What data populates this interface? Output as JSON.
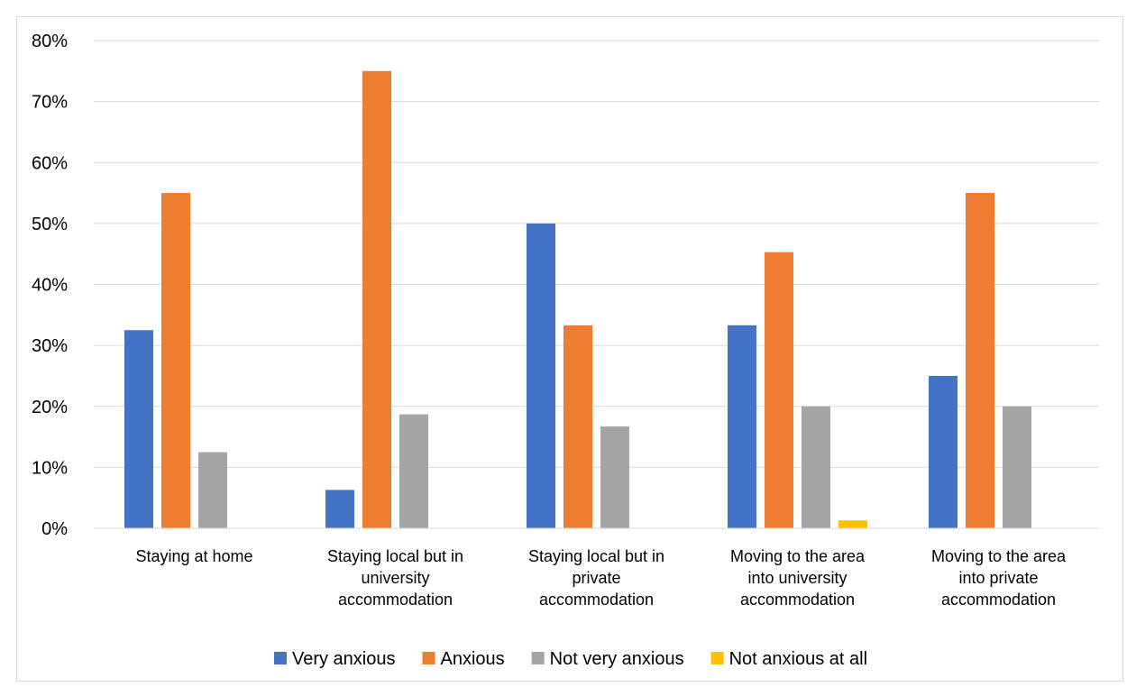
{
  "chart_data": {
    "type": "bar",
    "title": "",
    "xlabel": "",
    "ylabel": "",
    "ylim": [
      0,
      0.8
    ],
    "yticks": [
      "0%",
      "10%",
      "20%",
      "30%",
      "40%",
      "50%",
      "60%",
      "70%",
      "80%"
    ],
    "grid": true,
    "legend_position": "bottom",
    "categories": [
      [
        "Staying at home"
      ],
      [
        "Staying local but in",
        "university",
        "accommodation"
      ],
      [
        "Staying local but in",
        "private",
        "accommodation"
      ],
      [
        "Moving to the area",
        "into university",
        "accommodation"
      ],
      [
        "Moving to the area",
        "into private",
        "accommodation"
      ]
    ],
    "series": [
      {
        "name": "Very anxious",
        "color": "#4472C4",
        "values": [
          0.325,
          0.063,
          0.5,
          0.333,
          0.25
        ]
      },
      {
        "name": "Anxious",
        "color": "#ED7D31",
        "values": [
          0.55,
          0.75,
          0.333,
          0.453,
          0.55
        ]
      },
      {
        "name": "Not very anxious",
        "color": "#A5A5A5",
        "values": [
          0.125,
          0.187,
          0.167,
          0.2,
          0.2
        ]
      },
      {
        "name": "Not anxious at all",
        "color": "#FFC000",
        "values": [
          0,
          0,
          0,
          0.013,
          0
        ]
      }
    ]
  }
}
